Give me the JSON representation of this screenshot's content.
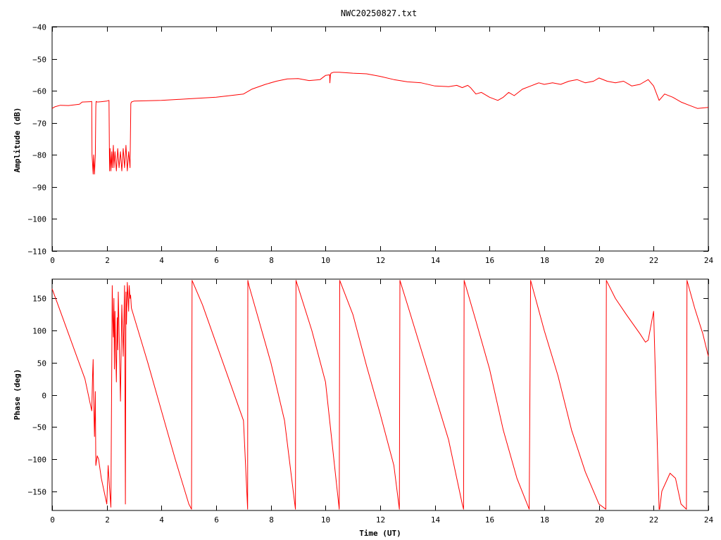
{
  "title": "NWC20250827.txt",
  "colors": {
    "series": "#ff0000",
    "axes": "#000000",
    "background": "#ffffff"
  },
  "chart_data": [
    {
      "type": "line",
      "ylabel": "Amplitude (dB)",
      "xlabel": "",
      "xlim": [
        0,
        24
      ],
      "ylim": [
        -110,
        -40
      ],
      "xticks": [
        "0",
        "2",
        "4",
        "6",
        "8",
        "10",
        "12",
        "14",
        "16",
        "18",
        "20",
        "22",
        "24"
      ],
      "yticks": [
        "-40",
        "-50",
        "-60",
        "-70",
        "-80",
        "-90",
        "-100",
        "-110"
      ],
      "grid": false,
      "series": [
        {
          "x": [
            0.0,
            0.1,
            0.3,
            0.6,
            1.0,
            1.1,
            1.4,
            1.45,
            1.46,
            1.5,
            1.52,
            1.55,
            1.58,
            1.6,
            1.61,
            1.65,
            1.8,
            2.0,
            2.08,
            2.1,
            2.12,
            2.15,
            2.18,
            2.2,
            2.24,
            2.26,
            2.3,
            2.35,
            2.4,
            2.45,
            2.5,
            2.55,
            2.6,
            2.65,
            2.7,
            2.75,
            2.8,
            2.85,
            2.88,
            2.9,
            3.0,
            4.0,
            5.0,
            6.0,
            6.5,
            7.0,
            7.3,
            7.8,
            8.2,
            8.6,
            9.0,
            9.4,
            9.8,
            10.0,
            10.15,
            10.16,
            10.18,
            10.2,
            10.3,
            10.5,
            11.0,
            11.5,
            12.0,
            12.5,
            13.0,
            13.5,
            14.0,
            14.5,
            14.8,
            15.0,
            15.2,
            15.3,
            15.5,
            15.7,
            16.0,
            16.3,
            16.5,
            16.7,
            16.9,
            17.2,
            17.5,
            17.8,
            18.0,
            18.3,
            18.6,
            18.9,
            19.2,
            19.5,
            19.8,
            20.0,
            20.3,
            20.6,
            20.9,
            21.2,
            21.5,
            21.8,
            22.0,
            22.2,
            22.4,
            22.7,
            23.0,
            23.3,
            23.6,
            24.0
          ],
          "y": [
            -65.5,
            -65.0,
            -64.5,
            -64.6,
            -64.2,
            -63.5,
            -63.4,
            -63.3,
            -80.0,
            -86.0,
            -80.0,
            -86.0,
            -80.0,
            -65.0,
            -63.3,
            -63.5,
            -63.4,
            -63.2,
            -63.0,
            -85.0,
            -78.0,
            -85.0,
            -79.0,
            -84.0,
            -77.0,
            -84.0,
            -79.0,
            -85.0,
            -78.0,
            -84.0,
            -79.0,
            -85.0,
            -78.0,
            -84.0,
            -77.0,
            -85.0,
            -79.0,
            -84.0,
            -64.0,
            -63.5,
            -63.2,
            -63.0,
            -62.5,
            -62.0,
            -61.5,
            -61.0,
            -59.5,
            -58.0,
            -57.0,
            -56.3,
            -56.2,
            -56.8,
            -56.5,
            -55.2,
            -55.0,
            -57.5,
            -55.0,
            -54.5,
            -54.2,
            -54.2,
            -54.5,
            -54.7,
            -55.5,
            -56.5,
            -57.2,
            -57.5,
            -58.5,
            -58.7,
            -58.3,
            -59.0,
            -58.3,
            -59.0,
            -61.0,
            -60.5,
            -62.0,
            -63.0,
            -62.0,
            -60.5,
            -61.5,
            -59.5,
            -58.5,
            -57.5,
            -58.0,
            -57.5,
            -58.0,
            -57.0,
            -56.5,
            -57.5,
            -57.0,
            -56.0,
            -57.0,
            -57.5,
            -57.0,
            -58.5,
            -58.0,
            -56.5,
            -58.5,
            -63.0,
            -61.0,
            -62.0,
            -63.5,
            -64.5,
            -65.5,
            -65.2
          ]
        }
      ]
    },
    {
      "type": "line",
      "ylabel": "Phase (deg)",
      "xlabel": "Time (UT)",
      "xlim": [
        0,
        24
      ],
      "ylim": [
        -180,
        180
      ],
      "xticks": [
        "0",
        "2",
        "4",
        "6",
        "8",
        "10",
        "12",
        "14",
        "16",
        "18",
        "20",
        "22",
        "24"
      ],
      "yticks": [
        "150",
        "100",
        "50",
        "0",
        "-50",
        "-100",
        "-150"
      ],
      "grid": false,
      "series": [
        {
          "x": [
            0.0,
            0.3,
            0.6,
            0.9,
            1.2,
            1.45,
            1.48,
            1.5,
            1.52,
            1.55,
            1.58,
            1.6,
            1.65,
            1.7,
            1.8,
            1.9,
            2.0,
            2.05,
            2.1,
            2.15,
            2.2,
            2.22,
            2.24,
            2.26,
            2.28,
            2.3,
            2.32,
            2.35,
            2.38,
            2.4,
            2.42,
            2.45,
            2.5,
            2.55,
            2.6,
            2.65,
            2.68,
            2.7,
            2.72,
            2.75,
            2.8,
            2.82,
            2.85,
            2.87,
            2.9,
            3.5,
            4.0,
            4.5,
            5.0,
            5.1,
            5.12,
            5.5,
            6.0,
            6.5,
            7.0,
            7.15,
            7.16,
            7.2,
            7.5,
            8.0,
            8.5,
            8.9,
            8.92,
            9.5,
            10.0,
            10.5,
            10.52,
            11.0,
            11.5,
            12.0,
            12.5,
            12.7,
            12.72,
            13.0,
            13.5,
            14.0,
            14.5,
            15.0,
            15.05,
            15.07,
            15.5,
            16.0,
            16.5,
            17.0,
            17.45,
            17.5,
            17.52,
            18.0,
            18.5,
            19.0,
            19.5,
            20.0,
            20.25,
            20.27,
            20.6,
            21.0,
            21.5,
            21.7,
            21.8,
            22.0,
            22.2,
            22.22,
            22.3,
            22.6,
            22.8,
            23.0,
            23.2,
            23.22,
            23.5,
            23.8,
            24.0
          ],
          "y": [
            165,
            130,
            95,
            60,
            25,
            -25,
            30,
            55,
            -5,
            -65,
            5,
            -110,
            -95,
            -100,
            -130,
            -150,
            -170,
            -110,
            -145,
            -175,
            170,
            120,
            90,
            150,
            40,
            130,
            80,
            20,
            120,
            70,
            160,
            100,
            -10,
            140,
            60,
            170,
            -170,
            160,
            110,
            175,
            130,
            170,
            150,
            155,
            135,
            50,
            -25,
            -100,
            -170,
            -178,
            178,
            140,
            80,
            20,
            -40,
            -178,
            178,
            170,
            125,
            50,
            -40,
            -178,
            178,
            100,
            20,
            -178,
            178,
            125,
            45,
            -30,
            -110,
            -178,
            178,
            140,
            70,
            0,
            -70,
            -170,
            -178,
            178,
            115,
            40,
            -55,
            -130,
            -178,
            178,
            175,
            100,
            30,
            -55,
            -120,
            -170,
            -178,
            178,
            150,
            125,
            95,
            82,
            85,
            130,
            -178,
            -178,
            -150,
            -122,
            -130,
            -170,
            -178,
            178,
            135,
            95,
            60
          ]
        }
      ]
    }
  ]
}
